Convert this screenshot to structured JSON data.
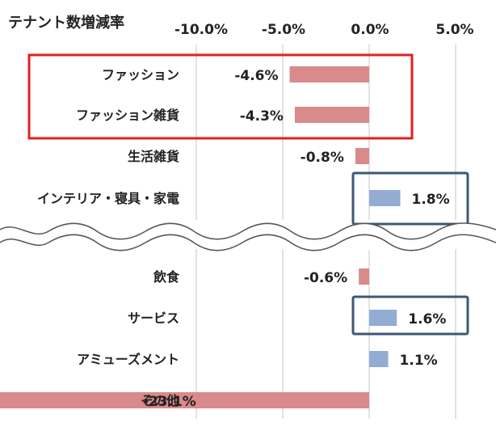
{
  "chart_data": {
    "type": "bar",
    "orientation": "horizontal",
    "title": "テナント数増減率",
    "xlim": [
      -10.0,
      5.0
    ],
    "x_ticks": [
      "-10.0%",
      "-5.0%",
      "0.0%",
      "5.0%"
    ],
    "grid": true,
    "axis_break": "between インテリア・寝具・家電 and 飲食",
    "categories": [
      "ファッション",
      "ファッション雑貨",
      "生活雑貨",
      "インテリア・寝具・家電",
      "飲食",
      "サービス",
      "アミューズメント",
      "その他"
    ],
    "values": [
      -4.6,
      -4.3,
      -0.8,
      1.8,
      -0.6,
      1.6,
      1.1,
      -23.1
    ],
    "value_labels": [
      "-4.6%",
      "-4.3%",
      "-0.8%",
      "1.8%",
      "-0.6%",
      "1.6%",
      "1.1%",
      "-23.1%"
    ],
    "highlight_red": [
      "ファッション",
      "ファッション雑貨"
    ],
    "highlight_blue": [
      "インテリア・寝具・家電",
      "サービス"
    ],
    "colors": {
      "negative": "#d98a8a",
      "positive": "#93acd4",
      "highlight_red": "#e02020",
      "highlight_blue": "#3c5878",
      "grid": "#cfcfcf"
    }
  }
}
